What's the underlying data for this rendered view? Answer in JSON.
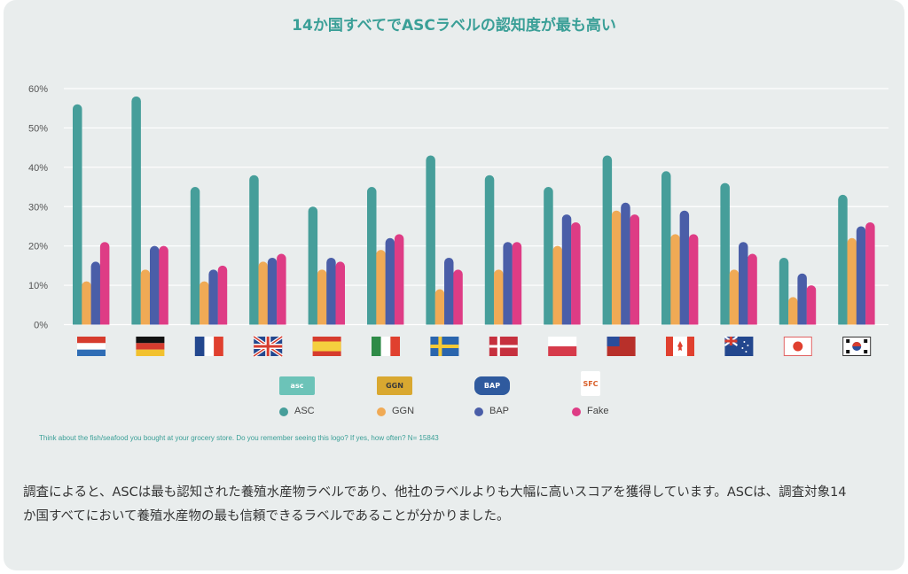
{
  "title": "14か国すべてでASCラベルの認知度が最も高い",
  "chart_data": {
    "type": "bar",
    "title": "14か国すべてでASCラベルの認知度が最も高い",
    "xlabel": "",
    "ylabel": "",
    "ylim": [
      0,
      60
    ],
    "yticks": [
      "0%",
      "10%",
      "20%",
      "30%",
      "40%",
      "50%",
      "60%"
    ],
    "grid": true,
    "legend_position": "bottom",
    "categories": [
      "nl-flag",
      "de-flag",
      "fr-flag",
      "uk-flag",
      "es-flag",
      "it-flag",
      "se-flag",
      "dk-flag",
      "pl-flag",
      "tw-flag",
      "ca-flag",
      "nz-flag",
      "jp-flag",
      "kr-flag"
    ],
    "series": [
      {
        "name": "ASC",
        "color": "#469e9a",
        "values": [
          56,
          58,
          35,
          38,
          30,
          35,
          43,
          38,
          35,
          43,
          39,
          36,
          17,
          33
        ]
      },
      {
        "name": "GGN",
        "color": "#f0aa55",
        "values": [
          11,
          14,
          11,
          16,
          14,
          19,
          9,
          14,
          20,
          29,
          23,
          14,
          7,
          22
        ]
      },
      {
        "name": "BAP",
        "color": "#4a5ea8",
        "values": [
          16,
          20,
          14,
          17,
          17,
          22,
          17,
          21,
          28,
          31,
          29,
          21,
          13,
          25
        ]
      },
      {
        "name": "Fake",
        "color": "#de3c85",
        "values": [
          21,
          20,
          15,
          18,
          16,
          23,
          14,
          21,
          26,
          28,
          23,
          18,
          10,
          26
        ]
      }
    ]
  },
  "legend_logos": [
    {
      "text": "asc",
      "bg": "#6cc3b8",
      "fg": "#ffffff"
    },
    {
      "text": "GGN",
      "bg": "#d9a830",
      "fg": "#3a3a3a"
    },
    {
      "text": "BAP",
      "bg": "#2f5a9e",
      "fg": "#ffffff"
    },
    {
      "text": "SFC",
      "bg": "#ffffff",
      "fg": "#d9602a"
    }
  ],
  "footnote": "Think about the fish/seafood you bought at your grocery store. Do you remember seeing this logo? If yes, how often? N= 15843",
  "paragraph_line1": "調査によると、ASCは最も認知された養殖水産物ラベルであり、他社のラベルよりも大幅に高いスコアを獲得しています。ASCは、調査対象14",
  "paragraph_line2": "か国すべてにおいて養殖水産物の最も信頼できるラベルであることが分かりました。"
}
